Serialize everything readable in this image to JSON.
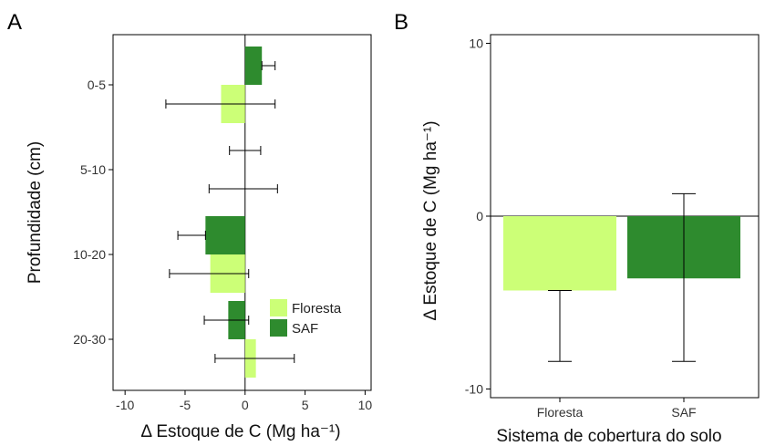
{
  "colors": {
    "floresta": "#ccff77",
    "saf": "#2e8b2e",
    "errorbar": "#000000",
    "axis": "#000000"
  },
  "chart_data": [
    {
      "panel": "A",
      "type": "bar",
      "orientation": "horizontal",
      "categories": [
        "0-5",
        "5-10",
        "10-20",
        "20-30"
      ],
      "series": [
        {
          "name": "Floresta",
          "values": [
            -2.0,
            0.0,
            -2.9,
            0.9
          ],
          "err_low": [
            -6.6,
            -3.0,
            -6.3,
            -2.5
          ],
          "err_high": [
            2.5,
            2.7,
            0.3,
            4.1
          ]
        },
        {
          "name": "SAF",
          "values": [
            1.4,
            0.0,
            -3.3,
            -1.4
          ],
          "err_low": [
            1.4,
            -1.3,
            -5.6,
            -3.4
          ],
          "err_high": [
            2.5,
            1.3,
            -3.3,
            0.3
          ]
        }
      ],
      "xlabel": "Δ Estoque de C (Mg ha⁻¹)",
      "ylabel": "Profundidade (cm)",
      "xlim": [
        -11,
        10.5
      ],
      "xticks": [
        "-10",
        "-5",
        "0",
        "5",
        "10"
      ],
      "legend": [
        "Floresta",
        "SAF"
      ],
      "legend_position": "bottom-right",
      "grid": false
    },
    {
      "panel": "B",
      "type": "bar",
      "categories": [
        "Floresta",
        "SAF"
      ],
      "values": [
        -4.3,
        -3.6
      ],
      "err_low": [
        -8.4,
        -8.4
      ],
      "err_high": [
        -4.3,
        1.3
      ],
      "xlabel": "Sistema de cobertura do solo",
      "ylabel": "Δ Estoque de C (Mg ha⁻¹)",
      "ylim": [
        -10.5,
        10.5
      ],
      "yticks": [
        "-10",
        "0",
        "10"
      ],
      "grid": false
    }
  ]
}
